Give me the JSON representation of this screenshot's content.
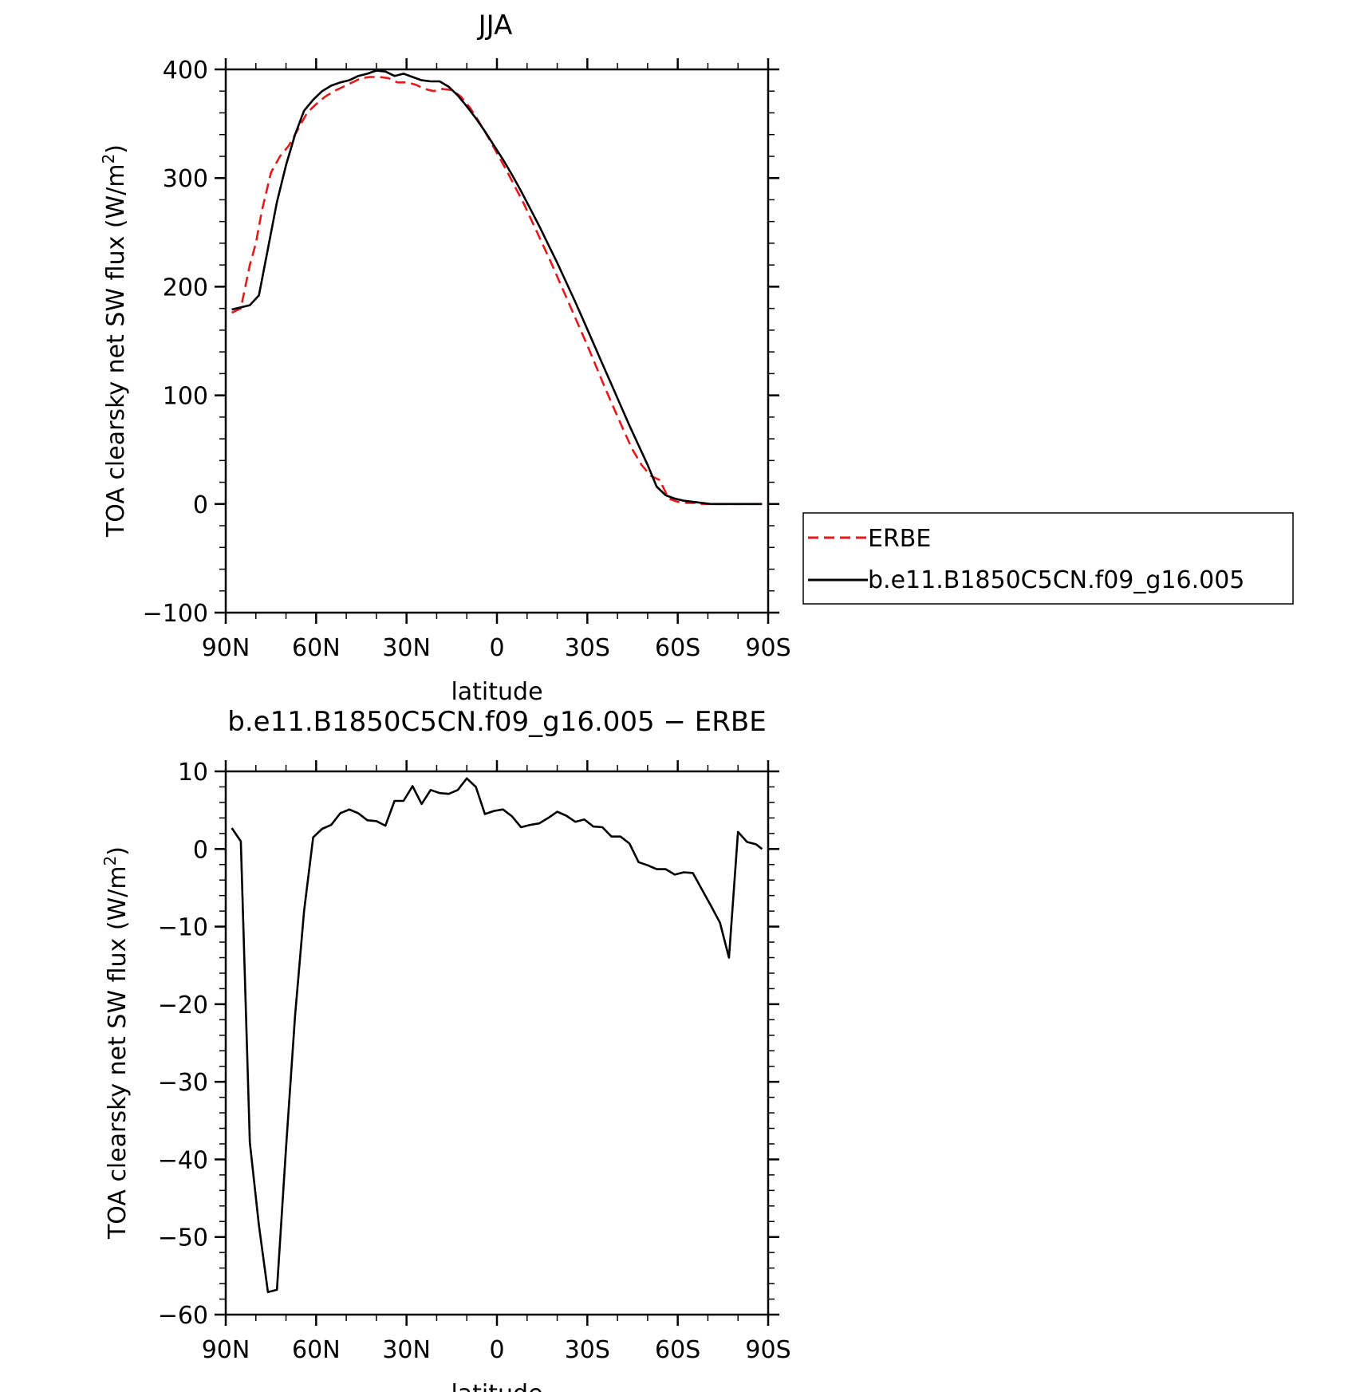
{
  "chart_data": [
    {
      "type": "line",
      "title": "JJA",
      "xlabel": "latitude",
      "ylabel_main": "TOA clearsky net SW flux (W/m",
      "ylabel_sup": "2",
      "ylabel_end": ")",
      "xlim": [
        90,
        -90
      ],
      "ylim": [
        -100,
        400
      ],
      "x_ticks": [
        90,
        60,
        30,
        0,
        -30,
        -60,
        -90
      ],
      "x_tick_labels": [
        "90N",
        "60N",
        "30N",
        "0",
        "30S",
        "60S",
        "90S"
      ],
      "y_ticks": [
        -100,
        0,
        100,
        200,
        300,
        400
      ],
      "y_tick_labels": [
        "−100",
        "0",
        "100",
        "200",
        "300",
        "400"
      ],
      "legend": "right",
      "series": [
        {
          "name": "ERBE",
          "color": "#e31a1c",
          "style": "dashed",
          "x": [
            88,
            85,
            82,
            80,
            78,
            75,
            72,
            69,
            66,
            63,
            60,
            57,
            54,
            51,
            48,
            45,
            42,
            39,
            36,
            33,
            30,
            27,
            24,
            21,
            18,
            15,
            12,
            9,
            6,
            3,
            0,
            -3,
            -6,
            -9,
            -12,
            -15,
            -18,
            -21,
            -24,
            -27,
            -30,
            -33,
            -36,
            -39,
            -42,
            -45,
            -48,
            -51,
            -54,
            -57,
            -60,
            -63,
            -66,
            -67,
            -69,
            -72,
            -75,
            -78,
            -81,
            -84,
            -87
          ],
          "y": [
            176,
            180,
            220,
            240,
            270,
            305,
            320,
            330,
            345,
            360,
            368,
            375,
            380,
            384,
            388,
            392,
            393,
            393,
            392,
            388,
            388,
            386,
            382,
            380,
            382,
            381,
            375,
            365,
            352,
            338,
            323,
            308,
            292,
            276,
            258,
            240,
            222,
            203,
            184,
            165,
            146,
            126,
            106,
            87,
            68,
            50,
            36,
            26,
            22,
            5,
            2,
            1,
            1,
            0,
            0,
            0,
            0,
            0,
            0,
            0,
            0
          ]
        },
        {
          "name": "b.e11.B1850C5CN.f09_g16.005",
          "color": "#000000",
          "style": "solid",
          "x": [
            88,
            85,
            82,
            79,
            76,
            73,
            70,
            67,
            64,
            61,
            58,
            55,
            52,
            49,
            46,
            43,
            40,
            37,
            34,
            31,
            28,
            25,
            22,
            19,
            16,
            13,
            10,
            7,
            4,
            1,
            -2,
            -5,
            -8,
            -11,
            -14,
            -17,
            -20,
            -23,
            -26,
            -29,
            -32,
            -35,
            -38,
            -41,
            -44,
            -47,
            -50,
            -53,
            -56,
            -59,
            -62,
            -65,
            -68,
            -71,
            -74,
            -77,
            -80,
            -83,
            -86,
            -88
          ],
          "y": [
            179,
            181,
            183,
            192,
            235,
            278,
            312,
            340,
            362,
            372,
            380,
            385,
            388,
            390,
            394,
            396,
            399,
            398,
            394,
            396,
            393,
            390,
            389,
            389,
            384,
            376,
            366,
            355,
            343,
            330,
            317,
            303,
            288,
            272,
            256,
            239,
            222,
            204,
            186,
            167,
            148,
            129,
            110,
            91,
            72,
            54,
            36,
            16,
            8,
            5,
            3,
            2,
            1,
            0,
            0,
            0,
            0,
            0,
            0,
            0
          ]
        }
      ]
    },
    {
      "type": "line",
      "title": "b.e11.B1850C5CN.f09_g16.005 − ERBE",
      "xlabel": "latitude",
      "ylabel_main": "TOA clearsky net SW flux (W/m",
      "ylabel_sup": "2",
      "ylabel_end": ")",
      "xlim": [
        90,
        -90
      ],
      "ylim": [
        -60,
        10
      ],
      "x_ticks": [
        90,
        60,
        30,
        0,
        -30,
        -60,
        -90
      ],
      "x_tick_labels": [
        "90N",
        "60N",
        "30N",
        "0",
        "30S",
        "60S",
        "90S"
      ],
      "y_ticks": [
        -60,
        -50,
        -40,
        -30,
        -20,
        -10,
        0,
        10
      ],
      "y_tick_labels": [
        "−60",
        "−50",
        "−40",
        "−30",
        "−20",
        "−10",
        "0",
        "10"
      ],
      "series": [
        {
          "color": "#000000",
          "style": "solid",
          "x": [
            88,
            85,
            82,
            79,
            76,
            73,
            70,
            67,
            64,
            61,
            58,
            55,
            52,
            49,
            46,
            43,
            40,
            37,
            34,
            31,
            28,
            25,
            22,
            19,
            16,
            13,
            10,
            7,
            4,
            1,
            -2,
            -5,
            -8,
            -11,
            -14,
            -17,
            -20,
            -23,
            -26,
            -29,
            -32,
            -35,
            -38,
            -41,
            -44,
            -47,
            -50,
            -53,
            -56,
            -59,
            -62,
            -65,
            -68,
            -71,
            -74,
            -77,
            -80,
            -83,
            -86,
            -88
          ],
          "y": [
            2.7,
            1.0,
            -37.8,
            -48.5,
            -57.1,
            -56.8,
            -38.5,
            -21.5,
            -8.0,
            1.5,
            2.6,
            3.1,
            4.6,
            5.1,
            4.6,
            3.7,
            3.6,
            3.0,
            6.2,
            6.2,
            8.1,
            5.8,
            7.6,
            7.2,
            7.1,
            7.6,
            9.1,
            8.0,
            4.5,
            4.9,
            5.1,
            4.2,
            2.8,
            3.1,
            3.3,
            4.0,
            4.8,
            4.3,
            3.5,
            3.8,
            2.9,
            2.8,
            1.6,
            1.6,
            0.7,
            -1.7,
            -2.1,
            -2.6,
            -2.6,
            -3.3,
            -3.0,
            -3.1,
            -5.2,
            -7.3,
            -9.5,
            -14.0,
            2.2,
            0.9,
            0.6,
            0.0
          ]
        }
      ]
    }
  ]
}
